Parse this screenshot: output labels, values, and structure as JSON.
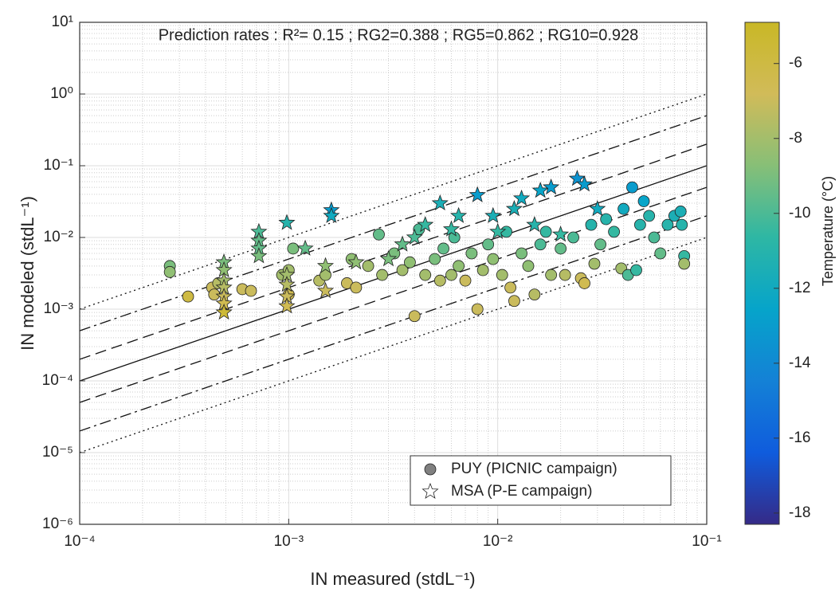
{
  "chart_data": {
    "type": "scatter",
    "annotation": "Prediction rates : R²= 0.15 ; RG2=0.388 ; RG5=0.862 ; RG10=0.928",
    "x_label": "IN measured (stdL⁻¹)",
    "y_label": "IN modeled (stdL⁻¹)",
    "log_x": true,
    "log_y": true,
    "grid": true,
    "legend": "lower right",
    "xlim": [
      0.0001,
      0.1
    ],
    "xticks": [
      {
        "value": 0.0001,
        "label": "10⁻⁴"
      },
      {
        "value": 0.001,
        "label": "10⁻³"
      },
      {
        "value": 0.01,
        "label": "10⁻²"
      },
      {
        "value": 0.1,
        "label": "10⁻¹"
      }
    ],
    "ylim": [
      1e-06,
      10
    ],
    "yticks": [
      {
        "value": 1e-06,
        "label": "10⁻⁶"
      },
      {
        "value": 1e-05,
        "label": "10⁻⁵"
      },
      {
        "value": 0.0001,
        "label": "10⁻⁴"
      },
      {
        "value": 0.001,
        "label": "10⁻³"
      },
      {
        "value": 0.01,
        "label": "10⁻²"
      },
      {
        "value": 0.1,
        "label": "10⁻¹"
      },
      {
        "value": 1,
        "label": "10⁰"
      },
      {
        "value": 10,
        "label": "10¹"
      }
    ],
    "reference_lines": [
      {
        "factor": 1,
        "dash": "none"
      },
      {
        "factor": 2,
        "dash": "14 7"
      },
      {
        "factor": 5,
        "dash": "14 5 3 5"
      },
      {
        "factor": 10,
        "dash": "2 4"
      }
    ],
    "colorbar": {
      "label": "Temperature (°C)",
      "clim": [
        -18.3,
        -4.9
      ],
      "ticks": [
        -6,
        -8,
        -10,
        -12,
        -14,
        -16,
        -18
      ],
      "colormap": [
        "#352a87",
        "#0f5cdd",
        "#1481d6",
        "#06a4ca",
        "#2eb7a4",
        "#87bf77",
        "#d1bb59",
        "#c9b826"
      ]
    },
    "series": [
      {
        "name": "PUY (PICNIC campaign)",
        "marker": "circle",
        "color": "#808080",
        "x": [
          0.00027,
          0.00027,
          0.00033,
          0.00043,
          0.00044,
          0.00046,
          0.0006,
          0.00066,
          0.00093,
          0.001,
          0.00105,
          0.001,
          0.0014,
          0.0015,
          0.0019,
          0.002,
          0.0021,
          0.0024,
          0.0027,
          0.0028,
          0.0032,
          0.0035,
          0.0038,
          0.004,
          0.0042,
          0.0045,
          0.005,
          0.0053,
          0.0055,
          0.006,
          0.0062,
          0.0065,
          0.007,
          0.0075,
          0.008,
          0.0085,
          0.009,
          0.0095,
          0.0105,
          0.011,
          0.0115,
          0.012,
          0.013,
          0.014,
          0.015,
          0.016,
          0.017,
          0.018,
          0.02,
          0.021,
          0.023,
          0.025,
          0.026,
          0.028,
          0.029,
          0.031,
          0.033,
          0.036,
          0.039,
          0.04,
          0.042,
          0.044,
          0.046,
          0.048,
          0.05,
          0.053,
          0.056,
          0.06,
          0.065,
          0.07,
          0.075,
          0.076,
          0.078,
          0.078
        ],
        "values": [
          0.004,
          0.0033,
          0.0015,
          0.002,
          0.0016,
          0.0023,
          0.0019,
          0.0018,
          0.003,
          0.0016,
          0.007,
          0.0035,
          0.0025,
          0.003,
          0.0023,
          0.005,
          0.002,
          0.004,
          0.011,
          0.003,
          0.006,
          0.0035,
          0.0045,
          0.0008,
          0.013,
          0.003,
          0.005,
          0.0025,
          0.007,
          0.003,
          0.01,
          0.004,
          0.0025,
          0.006,
          0.001,
          0.0035,
          0.008,
          0.005,
          0.003,
          0.012,
          0.002,
          0.0013,
          0.006,
          0.004,
          0.0016,
          0.008,
          0.012,
          0.003,
          0.007,
          0.003,
          0.01,
          0.0027,
          0.0023,
          0.015,
          0.0043,
          0.008,
          0.018,
          0.012,
          0.0037,
          0.025,
          0.003,
          0.05,
          0.0035,
          0.015,
          0.032,
          0.02,
          0.01,
          0.006,
          0.015,
          0.02,
          0.023,
          0.015,
          0.0055,
          0.0043
        ],
        "temperature": [
          -9,
          -8.5,
          -6,
          -7,
          -7,
          -7.5,
          -7,
          -7,
          -8,
          -6.5,
          -9,
          -8,
          -7.5,
          -8,
          -7,
          -8.5,
          -7,
          -8,
          -9.5,
          -8,
          -9,
          -8,
          -8.5,
          -7,
          -10,
          -8,
          -9,
          -7.5,
          -9.5,
          -8,
          -10,
          -8.5,
          -7,
          -9,
          -7,
          -8,
          -9.5,
          -8.5,
          -8,
          -10.5,
          -7,
          -7,
          -9,
          -8.5,
          -7.5,
          -10,
          -10.5,
          -8,
          -9.5,
          -7.5,
          -10,
          -7,
          -6.5,
          -11,
          -8,
          -9.5,
          -11,
          -10.5,
          -8,
          -12,
          -10,
          -13,
          -10.5,
          -11,
          -12.5,
          -11,
          -10,
          -9.5,
          -11,
          -11.5,
          -11.5,
          -11,
          -10.5,
          -8
        ]
      },
      {
        "name": "MSA (P-E campaign)",
        "marker": "star",
        "color": "#808080",
        "x": [
          0.00049,
          0.00049,
          0.00049,
          0.00049,
          0.00049,
          0.00049,
          0.00049,
          0.00072,
          0.00072,
          0.00072,
          0.00072,
          0.00098,
          0.00098,
          0.00098,
          0.00098,
          0.00098,
          0.0012,
          0.0015,
          0.0015,
          0.0016,
          0.0016,
          0.0021,
          0.003,
          0.0035,
          0.004,
          0.0045,
          0.0053,
          0.006,
          0.0065,
          0.008,
          0.0095,
          0.01,
          0.012,
          0.013,
          0.015,
          0.016,
          0.018,
          0.02,
          0.024,
          0.026,
          0.03
        ],
        "values": [
          0.0045,
          0.0035,
          0.0025,
          0.002,
          0.0015,
          0.0012,
          0.0009,
          0.012,
          0.009,
          0.007,
          0.0055,
          0.003,
          0.0022,
          0.0015,
          0.0011,
          0.016,
          0.007,
          0.004,
          0.0018,
          0.024,
          0.02,
          0.0045,
          0.005,
          0.008,
          0.01,
          0.015,
          0.03,
          0.013,
          0.02,
          0.039,
          0.02,
          0.012,
          0.025,
          0.035,
          0.015,
          0.045,
          0.05,
          0.011,
          0.066,
          0.055,
          0.025
        ],
        "temperature": [
          -9,
          -8.5,
          -8,
          -7.5,
          -7,
          -6.5,
          -5.5,
          -10,
          -9.5,
          -9.5,
          -9,
          -8,
          -7.5,
          -7,
          -6.5,
          -11,
          -9.5,
          -8.5,
          -7,
          -13,
          -12,
          -8.5,
          -9,
          -9.5,
          -10,
          -10.5,
          -11.5,
          -10.5,
          -11,
          -13,
          -11.5,
          -10.5,
          -11.5,
          -12,
          -11,
          -12.5,
          -13,
          -10.5,
          -13.5,
          -13,
          -12
        ]
      }
    ]
  }
}
